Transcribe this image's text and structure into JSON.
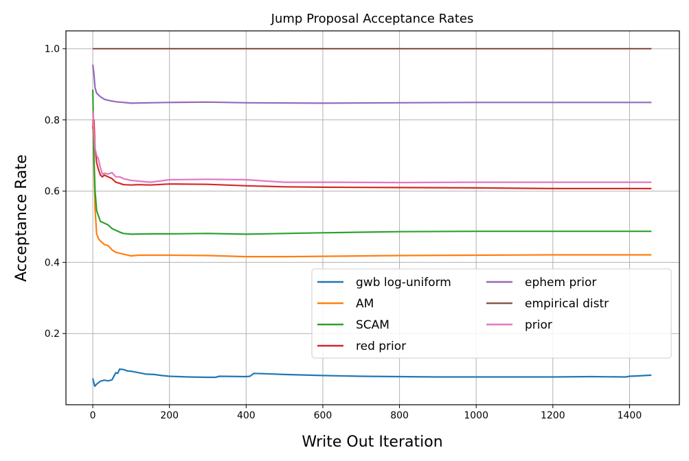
{
  "chart_data": {
    "type": "line",
    "title": "Jump Proposal Acceptance Rates",
    "xlabel": "Write Out Iteration",
    "ylabel": "Acceptance Rate",
    "xlim": [
      -70,
      1530
    ],
    "ylim": [
      0.0,
      1.05
    ],
    "xticks": [
      0,
      200,
      400,
      600,
      800,
      1000,
      1200,
      1400
    ],
    "yticks": [
      0.2,
      0.4,
      0.6,
      0.8,
      1.0
    ],
    "grid": true,
    "legend_position": "lower-right",
    "legend_columns": 2,
    "series": [
      {
        "name": "gwb log-uniform",
        "color": "#1f77b4",
        "x": [
          0,
          5,
          10,
          20,
          30,
          40,
          50,
          60,
          65,
          70,
          80,
          90,
          100,
          120,
          140,
          160,
          180,
          200,
          250,
          300,
          320,
          330,
          400,
          410,
          420,
          450,
          500,
          600,
          700,
          800,
          900,
          1000,
          1100,
          1200,
          1300,
          1390,
          1400,
          1420,
          1457
        ],
        "y": [
          0.074,
          0.052,
          0.058,
          0.066,
          0.069,
          0.067,
          0.07,
          0.09,
          0.088,
          0.1,
          0.099,
          0.095,
          0.094,
          0.09,
          0.086,
          0.085,
          0.082,
          0.08,
          0.078,
          0.077,
          0.077,
          0.08,
          0.079,
          0.08,
          0.088,
          0.087,
          0.085,
          0.082,
          0.08,
          0.079,
          0.078,
          0.078,
          0.078,
          0.078,
          0.079,
          0.078,
          0.08,
          0.081,
          0.083
        ]
      },
      {
        "name": "AM",
        "color": "#ff7f0e",
        "x": [
          0,
          3,
          6,
          10,
          15,
          20,
          30,
          40,
          50,
          60,
          80,
          100,
          120,
          150,
          200,
          300,
          400,
          500,
          600,
          800,
          1000,
          1200,
          1457
        ],
        "y": [
          0.8,
          0.68,
          0.55,
          0.48,
          0.466,
          0.46,
          0.45,
          0.447,
          0.435,
          0.428,
          0.423,
          0.418,
          0.42,
          0.42,
          0.42,
          0.419,
          0.416,
          0.416,
          0.417,
          0.419,
          0.42,
          0.421,
          0.421
        ]
      },
      {
        "name": "SCAM",
        "color": "#2ca02c",
        "x": [
          0,
          3,
          6,
          10,
          15,
          20,
          30,
          40,
          50,
          60,
          70,
          80,
          100,
          150,
          200,
          300,
          400,
          500,
          600,
          800,
          1000,
          1200,
          1457
        ],
        "y": [
          0.885,
          0.7,
          0.6,
          0.545,
          0.53,
          0.515,
          0.51,
          0.505,
          0.495,
          0.49,
          0.485,
          0.481,
          0.479,
          0.48,
          0.48,
          0.481,
          0.479,
          0.481,
          0.483,
          0.486,
          0.487,
          0.487,
          0.487
        ]
      },
      {
        "name": "red prior",
        "color": "#d62728",
        "x": [
          0,
          3,
          6,
          10,
          15,
          20,
          25,
          30,
          40,
          50,
          60,
          70,
          80,
          100,
          120,
          150,
          200,
          300,
          400,
          500,
          600,
          800,
          1000,
          1200,
          1457
        ],
        "y": [
          0.775,
          0.8,
          0.72,
          0.68,
          0.66,
          0.645,
          0.64,
          0.645,
          0.64,
          0.635,
          0.625,
          0.622,
          0.618,
          0.617,
          0.618,
          0.617,
          0.62,
          0.619,
          0.615,
          0.612,
          0.611,
          0.61,
          0.609,
          0.607,
          0.607
        ]
      },
      {
        "name": "ephem prior",
        "color": "#9467bd",
        "x": [
          0,
          3,
          6,
          10,
          15,
          20,
          30,
          40,
          50,
          60,
          80,
          100,
          150,
          200,
          300,
          400,
          600,
          800,
          1000,
          1200,
          1457
        ],
        "y": [
          0.955,
          0.93,
          0.89,
          0.875,
          0.87,
          0.865,
          0.858,
          0.855,
          0.853,
          0.851,
          0.849,
          0.847,
          0.848,
          0.849,
          0.85,
          0.848,
          0.847,
          0.848,
          0.849,
          0.849,
          0.849
        ]
      },
      {
        "name": "empirical distr",
        "color": "#8c564b",
        "x": [
          0,
          1457
        ],
        "y": [
          1.0,
          1.0
        ]
      },
      {
        "name": "prior",
        "color": "#e377c2",
        "x": [
          0,
          3,
          6,
          10,
          15,
          20,
          25,
          30,
          40,
          50,
          60,
          70,
          80,
          100,
          120,
          150,
          200,
          300,
          400,
          500,
          600,
          800,
          1000,
          1200,
          1457
        ],
        "y": [
          0.825,
          0.76,
          0.72,
          0.7,
          0.69,
          0.665,
          0.648,
          0.65,
          0.648,
          0.652,
          0.64,
          0.64,
          0.635,
          0.63,
          0.628,
          0.625,
          0.632,
          0.633,
          0.632,
          0.625,
          0.625,
          0.624,
          0.625,
          0.625,
          0.625
        ]
      }
    ]
  }
}
